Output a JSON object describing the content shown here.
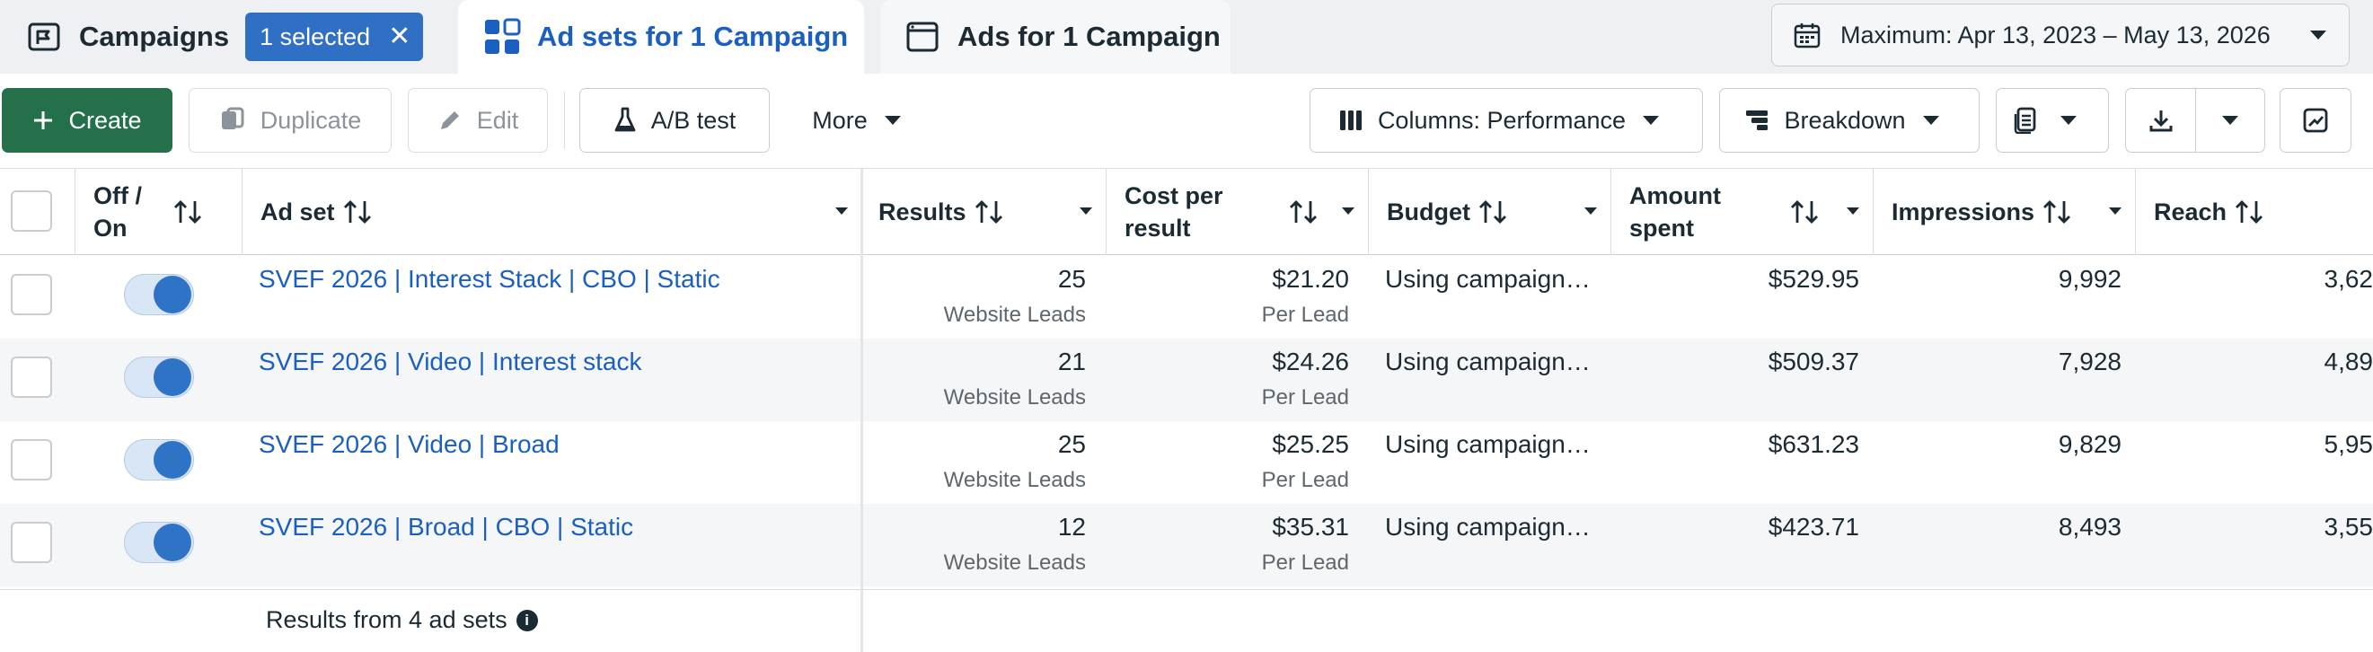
{
  "tabs": {
    "campaigns": {
      "label": "Campaigns",
      "badge": "1 selected",
      "badge_close": "✕"
    },
    "adsets": {
      "label": "Ad sets for 1 Campaign"
    },
    "ads": {
      "label": "Ads for 1 Campaign"
    }
  },
  "date_range": {
    "label": "Maximum: Apr 13, 2023 – May 13, 2026"
  },
  "toolbar": {
    "create": "Create",
    "duplicate": "Duplicate",
    "edit": "Edit",
    "ab_test": "A/B test",
    "more": "More",
    "columns": "Columns: Performance",
    "breakdown": "Breakdown"
  },
  "columns": {
    "off_on": "Off / On",
    "ad_set": "Ad set",
    "results": "Results",
    "cost_per_result": "Cost per result",
    "budget": "Budget",
    "amount_spent": "Amount spent",
    "impressions": "Impressions",
    "reach": "Reach"
  },
  "rows": [
    {
      "name": "SVEF 2026 | Interest Stack | CBO | Static",
      "results": "25",
      "results_type": "Website Leads",
      "cost": "$21.20",
      "cost_type": "Per Lead",
      "budget": "Using campaign…",
      "spent": "$529.95",
      "impressions": "9,992",
      "reach": "3,62",
      "on": true
    },
    {
      "name": "SVEF 2026 | Video | Interest stack",
      "results": "21",
      "results_type": "Website Leads",
      "cost": "$24.26",
      "cost_type": "Per Lead",
      "budget": "Using campaign…",
      "spent": "$509.37",
      "impressions": "7,928",
      "reach": "4,89",
      "on": true
    },
    {
      "name": "SVEF 2026 | Video | Broad",
      "results": "25",
      "results_type": "Website Leads",
      "cost": "$25.25",
      "cost_type": "Per Lead",
      "budget": "Using campaign…",
      "spent": "$631.23",
      "impressions": "9,829",
      "reach": "5,95",
      "on": true
    },
    {
      "name": "SVEF 2026 | Broad | CBO | Static",
      "results": "12",
      "results_type": "Website Leads",
      "cost": "$35.31",
      "cost_type": "Per Lead",
      "budget": "Using campaign…",
      "spent": "$423.71",
      "impressions": "8,493",
      "reach": "3,55",
      "on": true
    }
  ],
  "footer": {
    "summary": "Results from 4 ad sets",
    "info_icon": "i"
  },
  "icons": {
    "campaigns": "flag-folder-icon",
    "adsets": "grid-icon",
    "ads": "ad-window-icon",
    "calendar": "calendar-icon",
    "create": "plus-icon",
    "duplicate": "duplicate-icon",
    "edit": "pencil-icon",
    "ab_test": "flask-icon",
    "columns": "columns-icon",
    "breakdown": "breakdown-icon",
    "reports": "reports-icon",
    "export": "download-icon",
    "chart": "chart-icon"
  },
  "colors": {
    "primary": "#23704b",
    "link": "#1b5fc0",
    "badge": "#2f6fc4"
  }
}
